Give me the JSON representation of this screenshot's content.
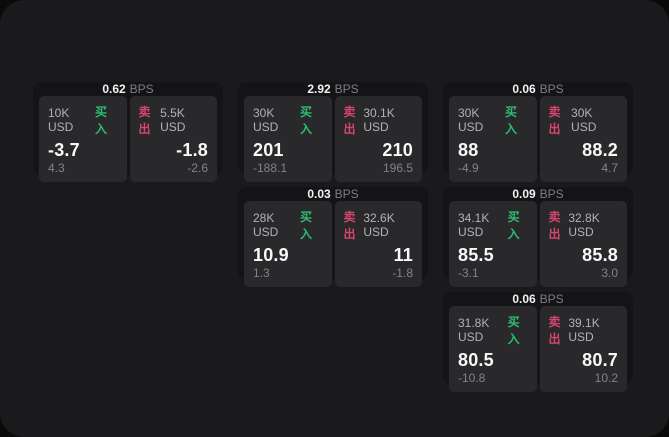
{
  "colors": {
    "buy": "#2ebd70",
    "sell": "#d8456b",
    "panel_bg": "#1a1a1c",
    "card_bg": "#141416",
    "tile_bg": "#29292c"
  },
  "cards": [
    {
      "bps": "0.62",
      "unit": "BPS",
      "grid": {
        "row": 1,
        "col": 1
      },
      "buy": {
        "amount": "10K USD",
        "label": "买入",
        "value": "-3.7",
        "delta": "4.3"
      },
      "sell": {
        "label": "卖出",
        "amount": "5.5K USD",
        "value": "-1.8",
        "delta": "-2.6"
      }
    },
    {
      "bps": "2.92",
      "unit": "BPS",
      "grid": {
        "row": 1,
        "col": 2
      },
      "buy": {
        "amount": "30K USD",
        "label": "买入",
        "value": "201",
        "delta": "-188.1"
      },
      "sell": {
        "label": "卖出",
        "amount": "30.1K USD",
        "value": "210",
        "delta": "196.5"
      }
    },
    {
      "bps": "0.06",
      "unit": "BPS",
      "grid": {
        "row": 1,
        "col": 3
      },
      "buy": {
        "amount": "30K USD",
        "label": "买入",
        "value": "88",
        "delta": "-4.9"
      },
      "sell": {
        "label": "卖出",
        "amount": "30K USD",
        "value": "88.2",
        "delta": "4.7"
      }
    },
    {
      "bps": "0.03",
      "unit": "BPS",
      "grid": {
        "row": 2,
        "col": 2
      },
      "buy": {
        "amount": "28K USD",
        "label": "买入",
        "value": "10.9",
        "delta": "1.3"
      },
      "sell": {
        "label": "卖出",
        "amount": "32.6K USD",
        "value": "11",
        "delta": "-1.8"
      }
    },
    {
      "bps": "0.09",
      "unit": "BPS",
      "grid": {
        "row": 2,
        "col": 3
      },
      "buy": {
        "amount": "34.1K USD",
        "label": "买入",
        "value": "85.5",
        "delta": "-3.1"
      },
      "sell": {
        "label": "卖出",
        "amount": "32.8K USD",
        "value": "85.8",
        "delta": "3.0"
      }
    },
    {
      "bps": "0.06",
      "unit": "BPS",
      "grid": {
        "row": 3,
        "col": 3
      },
      "buy": {
        "amount": "31.8K USD",
        "label": "买入",
        "value": "80.5",
        "delta": "-10.8"
      },
      "sell": {
        "label": "卖出",
        "amount": "39.1K USD",
        "value": "80.7",
        "delta": "10.2"
      }
    }
  ]
}
